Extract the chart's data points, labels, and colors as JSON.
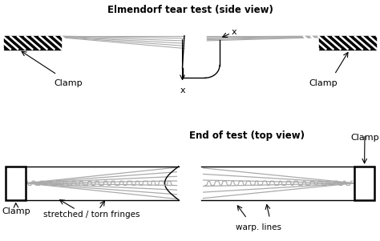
{
  "title_top": "Elmendorf tear test (side view)",
  "title_bottom": "End of test (top view)",
  "label_clamp_left_top": "Clamp",
  "label_clamp_right_top": "Clamp",
  "label_clamp_left_bottom": "Clamp",
  "label_clamp_right_bottom": "Clamp",
  "label_x1": "x",
  "label_x2": "x",
  "label_fringes": "stretched / torn fringes",
  "label_warp": "warp. lines",
  "bg_color": "#ffffff",
  "line_color": "#000000",
  "gray_color": "#aaaaaa",
  "lgc": "#999999"
}
